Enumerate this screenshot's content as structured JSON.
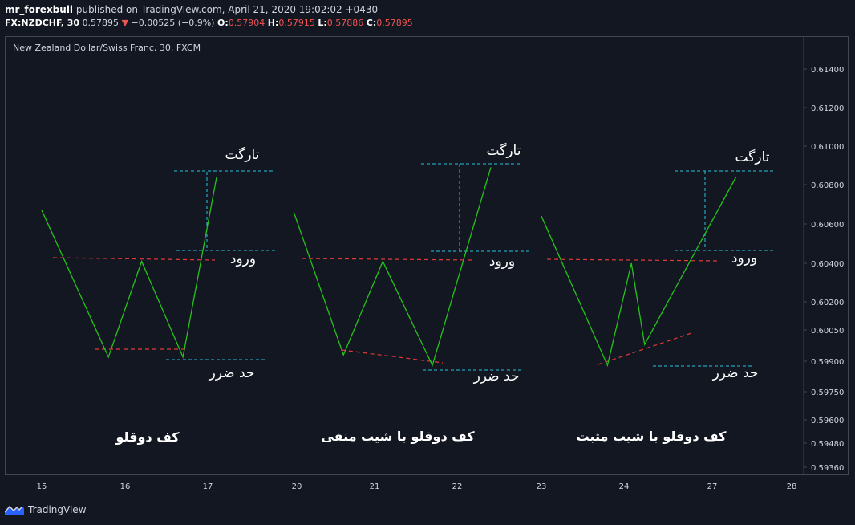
{
  "header": {
    "user": "mr_forexbull",
    "published_text": "published on TradingView.com, April 21, 2020 19:02:02 +0430",
    "symbol": "FX:NZDCHF, 30",
    "last": "0.57895",
    "change": "−0.00525 (−0.9%)",
    "o_label": "O:",
    "o_value": "0.57904",
    "h_label": "H:",
    "h_value": "0.57915",
    "l_label": "L:",
    "l_value": "0.57886",
    "c_label": "C:",
    "c_value": "0.57895"
  },
  "chart_title": "New Zealand Dollar/Swiss Franc, 30, FXCM",
  "footer": {
    "brand": "TradingView",
    "logo_icon": "tradingview-logo-icon"
  },
  "colors": {
    "background": "#131722",
    "axis_line": "#434651",
    "pattern_line": "#26c21a",
    "neckline": "#e53935",
    "target_line": "#26c6da",
    "text": "#ffffff",
    "down": "#ef5350"
  },
  "chart_data": {
    "type": "line",
    "y_axis_ticks": [
      "0.61400",
      "0.61200",
      "0.61000",
      "0.60800",
      "0.60600",
      "0.60400",
      "0.60200",
      "0.60050",
      "0.59900",
      "0.59750",
      "0.59600",
      "0.59480",
      "0.59360"
    ],
    "x_axis_ticks": [
      "15",
      "16",
      "17",
      "20",
      "21",
      "22",
      "23",
      "24",
      "27",
      "28"
    ],
    "patterns": [
      {
        "name": "کف دوقلو",
        "labels": {
          "target": "تارگت",
          "entry": "ورود",
          "stop": "حد ضرر"
        },
        "zigzag": [
          [
            15.0,
            0.6067
          ],
          [
            15.8,
            0.5992
          ],
          [
            16.2,
            0.6041
          ],
          [
            16.7,
            0.5992
          ],
          [
            17.3,
            0.6084
          ]
        ]
      },
      {
        "name": "کف دوقلو با شیب منفی",
        "labels": {
          "target": "تارگت",
          "entry": "ورود",
          "stop": "حد ضرر"
        },
        "zigzag": [
          [
            19.9,
            0.6066
          ],
          [
            20.6,
            0.5993
          ],
          [
            21.1,
            0.6041
          ],
          [
            21.7,
            0.5988
          ],
          [
            22.4,
            0.6089
          ]
        ]
      },
      {
        "name": "کف دوقلو با شیب مثبت",
        "labels": {
          "target": "تارگت",
          "entry": "ورود",
          "stop": "حد ضرر"
        },
        "zigzag": [
          [
            23.0,
            0.6064
          ],
          [
            23.8,
            0.5988
          ],
          [
            24.25,
            0.604
          ],
          [
            24.7,
            0.5998
          ],
          [
            27.3,
            0.6084
          ]
        ]
      }
    ]
  }
}
